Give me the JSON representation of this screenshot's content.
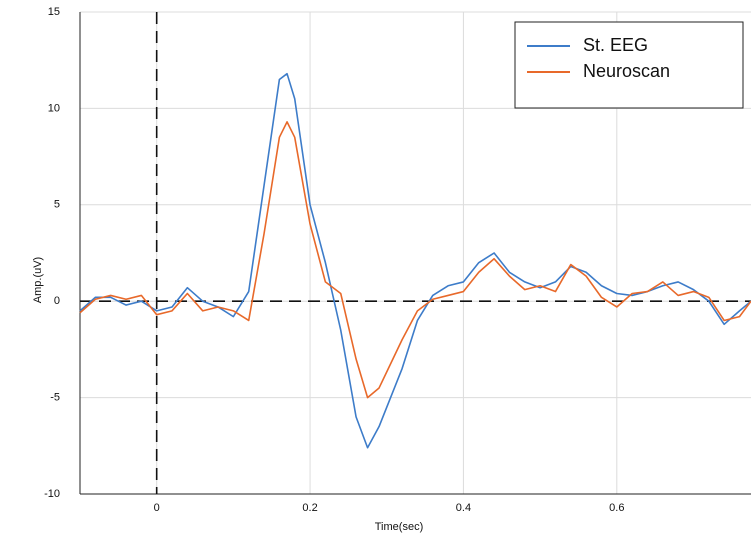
{
  "chart_data": {
    "type": "line",
    "x_label": "Time(sec)",
    "y_label": "Amp.(uV)",
    "x": [
      -0.1,
      -0.08,
      -0.06,
      -0.04,
      -0.02,
      0,
      0.02,
      0.04,
      0.06,
      0.08,
      0.1,
      0.12,
      0.14,
      0.16,
      0.17,
      0.18,
      0.2,
      0.22,
      0.24,
      0.26,
      0.275,
      0.29,
      0.32,
      0.34,
      0.36,
      0.38,
      0.4,
      0.42,
      0.44,
      0.46,
      0.48,
      0.5,
      0.52,
      0.54,
      0.56,
      0.58,
      0.6,
      0.62,
      0.64,
      0.66,
      0.68,
      0.7,
      0.72,
      0.74,
      0.76,
      0.775
    ],
    "series": [
      {
        "name": "St. EEG",
        "color": "#3d7cc9",
        "values": [
          -0.5,
          0.2,
          0.2,
          -0.2,
          0.0,
          -0.5,
          -0.3,
          0.7,
          0.0,
          -0.3,
          -0.8,
          0.5,
          6,
          11.5,
          11.8,
          10.5,
          5,
          2,
          -1.5,
          -6,
          -7.6,
          -6.5,
          -3.5,
          -1,
          0.3,
          0.8,
          1.0,
          2.0,
          2.5,
          1.5,
          1.0,
          0.7,
          1.0,
          1.8,
          1.5,
          0.8,
          0.4,
          0.3,
          0.5,
          0.8,
          1.0,
          0.6,
          0.0,
          -1.2,
          -0.5,
          0.0
        ]
      },
      {
        "name": "Neuroscan",
        "color": "#e8692a",
        "values": [
          -0.6,
          0.1,
          0.3,
          0.1,
          0.3,
          -0.7,
          -0.5,
          0.4,
          -0.5,
          -0.3,
          -0.5,
          -1.0,
          3.5,
          8.5,
          9.3,
          8.5,
          4,
          1.0,
          0.4,
          -3,
          -5.0,
          -4.5,
          -2,
          -0.5,
          0.1,
          0.3,
          0.5,
          1.5,
          2.2,
          1.3,
          0.6,
          0.8,
          0.5,
          1.9,
          1.3,
          0.2,
          -0.3,
          0.4,
          0.5,
          1.0,
          0.3,
          0.5,
          0.2,
          -1.0,
          -0.8,
          0.0
        ]
      }
    ],
    "xlim": [
      -0.1,
      0.775
    ],
    "xticks": [
      0,
      0.2,
      0.4,
      0.6
    ],
    "ylim": [
      -10,
      15
    ],
    "yticks": [
      -10,
      -5,
      0,
      5,
      10,
      15
    ],
    "grid": true,
    "legend": "upper right"
  }
}
